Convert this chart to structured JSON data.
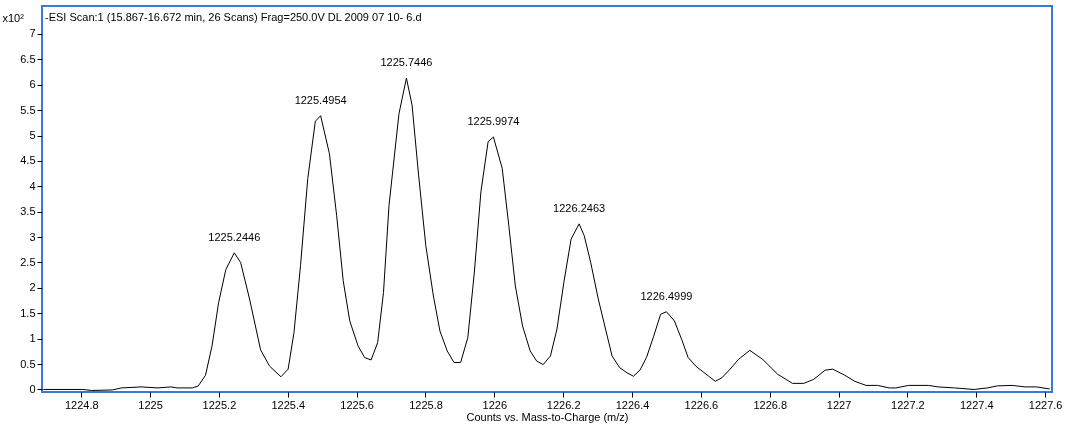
{
  "chart_data": {
    "type": "line",
    "title": "-ESI Scan:1 (15.867-16.672 min, 26 Scans) Frag=250.0V DL 2009 07 10- 6.d",
    "xlabel": "Counts vs. Mass-to-Charge (m/z)",
    "ylabel": "x10²",
    "xlim": [
      1224.686,
      1227.62
    ],
    "ylim": [
      -0.05,
      7.55
    ],
    "xticks": [
      1224.8,
      1225,
      1225.2,
      1225.4,
      1225.6,
      1225.8,
      1226,
      1226.2,
      1226.4,
      1226.6,
      1226.8,
      1227,
      1227.2,
      1227.4,
      1227.6
    ],
    "yticks": [
      0,
      0.5,
      1,
      1.5,
      2,
      2.5,
      3,
      3.5,
      4,
      4.5,
      5,
      5.5,
      6,
      6.5,
      7
    ],
    "series": [
      {
        "color": "#000000",
        "x": [
          1224.69,
          1224.804,
          1224.83,
          1224.89,
          1224.917,
          1224.974,
          1225.023,
          1225.06,
          1225.08,
          1225.123,
          1225.14,
          1225.161,
          1225.18,
          1225.199,
          1225.22,
          1225.2446,
          1225.263,
          1225.289,
          1225.321,
          1225.347,
          1225.38,
          1225.401,
          1225.418,
          1225.437,
          1225.458,
          1225.48,
          1225.4954,
          1225.521,
          1225.542,
          1225.561,
          1225.58,
          1225.604,
          1225.623,
          1225.642,
          1225.661,
          1225.678,
          1225.694,
          1225.723,
          1225.7446,
          1225.761,
          1225.78,
          1225.801,
          1225.823,
          1225.842,
          1225.863,
          1225.883,
          1225.902,
          1225.923,
          1225.942,
          1225.961,
          1225.982,
          1225.9974,
          1226.023,
          1226.042,
          1226.061,
          1226.082,
          1226.104,
          1226.123,
          1226.142,
          1226.163,
          1226.182,
          1226.202,
          1226.223,
          1226.2463,
          1226.261,
          1226.28,
          1226.302,
          1226.323,
          1226.342,
          1226.364,
          1226.385,
          1226.404,
          1226.423,
          1226.442,
          1226.463,
          1226.483,
          1226.4999,
          1226.523,
          1226.544,
          1226.563,
          1226.585,
          1226.604,
          1226.623,
          1226.642,
          1226.661,
          1226.685,
          1226.709,
          1226.742,
          1226.78,
          1226.823,
          1226.866,
          1226.899,
          1226.928,
          1226.961,
          1226.983,
          1227.018,
          1227.047,
          1227.08,
          1227.113,
          1227.147,
          1227.166,
          1227.204,
          1227.261,
          1227.289,
          1227.337,
          1227.394,
          1227.432,
          1227.461,
          1227.504,
          1227.542,
          1227.575,
          1227.613
        ],
        "values": [
          0,
          0,
          -0.02,
          -0.01,
          0.03,
          0.05,
          0.03,
          0.05,
          0.03,
          0.03,
          0.07,
          0.28,
          0.86,
          1.71,
          2.36,
          2.69,
          2.5,
          1.78,
          0.78,
          0.46,
          0.25,
          0.4,
          1.12,
          2.44,
          4.15,
          5.28,
          5.39,
          4.64,
          3.42,
          2.14,
          1.35,
          0.86,
          0.63,
          0.58,
          0.92,
          1.91,
          3.62,
          5.43,
          6.13,
          5.6,
          4.22,
          2.83,
          1.84,
          1.15,
          0.76,
          0.53,
          0.53,
          1.02,
          2.31,
          3.89,
          4.88,
          4.97,
          4.35,
          3.23,
          2.04,
          1.25,
          0.76,
          0.56,
          0.49,
          0.66,
          1.19,
          2.11,
          2.96,
          3.26,
          3.03,
          2.5,
          1.78,
          1.19,
          0.66,
          0.43,
          0.33,
          0.26,
          0.38,
          0.63,
          1.05,
          1.48,
          1.53,
          1.35,
          0.99,
          0.63,
          0.46,
          0.36,
          0.26,
          0.16,
          0.23,
          0.4,
          0.59,
          0.77,
          0.59,
          0.3,
          0.12,
          0.12,
          0.2,
          0.38,
          0.4,
          0.28,
          0.16,
          0.08,
          0.08,
          0.03,
          0.03,
          0.08,
          0.08,
          0.05,
          0.03,
          0,
          0.03,
          0.07,
          0.08,
          0.05,
          0.05,
          0.01
        ]
      }
    ],
    "annotations": [
      {
        "text": "1225.2446",
        "x": 1225.2446,
        "y": 2.69
      },
      {
        "text": "1225.4954",
        "x": 1225.4954,
        "y": 5.39
      },
      {
        "text": "1225.7446",
        "x": 1225.7446,
        "y": 6.13
      },
      {
        "text": "1225.9974",
        "x": 1225.9974,
        "y": 4.97
      },
      {
        "text": "1226.2463",
        "x": 1226.2463,
        "y": 3.26
      },
      {
        "text": "1226.4999",
        "x": 1226.4999,
        "y": 1.53
      }
    ]
  }
}
